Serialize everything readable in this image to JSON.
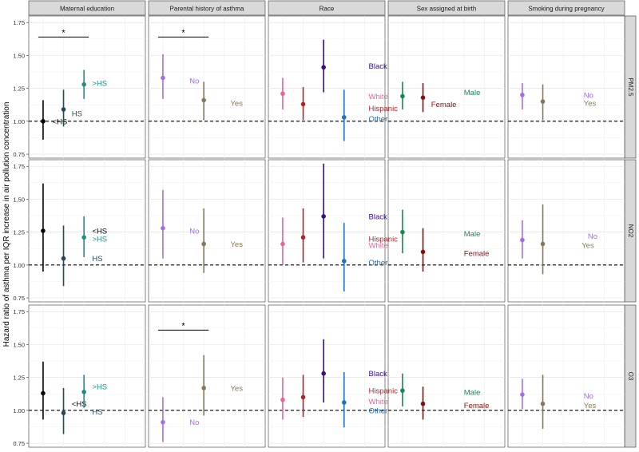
{
  "chart_data": {
    "type": "scatter",
    "subtype": "faceted point-range (estimate with confidence interval)",
    "ylabel": "Hazard ratio of asthma per IQR increase in air pollution concentration",
    "ylim": [
      0.72,
      1.8
    ],
    "yticks": [
      "0.75",
      "1.00",
      "1.25",
      "1.50",
      "1.75"
    ],
    "reference_line": 1.0,
    "grid": true,
    "columns": [
      "Maternal education",
      "Parental history of asthma",
      "Race",
      "Sex assigned at birth",
      "Smoking during pregnancy"
    ],
    "rows": [
      "PM2.5",
      "NO2",
      "O3"
    ],
    "colors": {
      "<HS": "#000000",
      "HS": "#1b4d55",
      ">HS": "#1a8f8a",
      "No": "#a56de2",
      "Yes": "#857a57",
      "Black": "#3d0a91",
      "White": "#f0609e",
      "Hispanic": "#b0232a",
      "Other": "#1f6fc4",
      "Male": "#138a4f",
      "Female": "#8b0d0d",
      "significance_bar": "#000000",
      "reference": "#000000",
      "strip": "#d9d9d9"
    },
    "significance_marker": "*",
    "panels": [
      {
        "row": 0,
        "col": 0,
        "sig": [
          1,
          3,
          1.64
        ],
        "points": [
          {
            "name": "<HS",
            "x": 1,
            "est": 1.0,
            "lo": 0.86,
            "hi": 1.16,
            "label": "<HS",
            "ly": 1.0,
            "lx": 1.45
          },
          {
            "name": "HS",
            "x": 2,
            "est": 1.09,
            "lo": 0.96,
            "hi": 1.24,
            "label": "HS",
            "ly": 1.06,
            "lx": 2.4
          },
          {
            "name": ">HS",
            "x": 3,
            "est": 1.28,
            "lo": 1.17,
            "hi": 1.39,
            "label": ">HS",
            "ly": 1.29,
            "lx": 3.4
          }
        ]
      },
      {
        "row": 0,
        "col": 1,
        "sig": [
          1,
          3,
          1.64
        ],
        "points": [
          {
            "name": "No",
            "x": 1,
            "est": 1.33,
            "lo": 1.17,
            "hi": 1.51,
            "label": "No",
            "ly": 1.31,
            "lx": 2.3
          },
          {
            "name": "Yes",
            "x": 3,
            "est": 1.16,
            "lo": 1.01,
            "hi": 1.3,
            "label": "Yes",
            "ly": 1.14,
            "lx": 4.3
          }
        ]
      },
      {
        "row": 0,
        "col": 2,
        "points": [
          {
            "name": "White",
            "x": 1,
            "est": 1.21,
            "lo": 1.09,
            "hi": 1.33,
            "label": "White",
            "ly": 1.19,
            "lx": 5.2
          },
          {
            "name": "Hispanic",
            "x": 2,
            "est": 1.13,
            "lo": 1.01,
            "hi": 1.26,
            "label": "Hispanic",
            "ly": 1.1,
            "lx": 5.2
          },
          {
            "name": "Black",
            "x": 3,
            "est": 1.41,
            "lo": 1.22,
            "hi": 1.62,
            "label": "Black",
            "ly": 1.42,
            "lx": 5.2
          },
          {
            "name": "Other",
            "x": 4,
            "est": 1.03,
            "lo": 0.85,
            "hi": 1.24,
            "label": "Other",
            "ly": 1.02,
            "lx": 5.2
          }
        ]
      },
      {
        "row": 0,
        "col": 3,
        "points": [
          {
            "name": "Male",
            "x": 1,
            "est": 1.19,
            "lo": 1.09,
            "hi": 1.3,
            "label": "Male",
            "ly": 1.22,
            "lx": 4.0
          },
          {
            "name": "Female",
            "x": 2,
            "est": 1.18,
            "lo": 1.07,
            "hi": 1.29,
            "label": "Female",
            "ly": 1.13,
            "lx": 2.4
          }
        ]
      },
      {
        "row": 0,
        "col": 4,
        "points": [
          {
            "name": "No",
            "x": 1,
            "est": 1.2,
            "lo": 1.09,
            "hi": 1.29,
            "label": "No",
            "ly": 1.2,
            "lx": 4.0
          },
          {
            "name": "Yes",
            "x": 2,
            "est": 1.15,
            "lo": 1.01,
            "hi": 1.28,
            "label": "Yes",
            "ly": 1.14,
            "lx": 4.0
          }
        ]
      },
      {
        "row": 1,
        "col": 0,
        "points": [
          {
            "name": "<HS",
            "x": 1,
            "est": 1.26,
            "lo": 0.95,
            "hi": 1.62,
            "label": "<HS",
            "ly": 1.26,
            "lx": 3.4
          },
          {
            "name": "HS",
            "x": 2,
            "est": 1.05,
            "lo": 0.84,
            "hi": 1.3,
            "label": "HS",
            "ly": 1.05,
            "lx": 3.4
          },
          {
            "name": ">HS",
            "x": 3,
            "est": 1.21,
            "lo": 1.06,
            "hi": 1.37,
            "label": ">HS",
            "ly": 1.2,
            "lx": 3.4
          }
        ]
      },
      {
        "row": 1,
        "col": 1,
        "points": [
          {
            "name": "No",
            "x": 1,
            "est": 1.28,
            "lo": 1.05,
            "hi": 1.57,
            "label": "No",
            "ly": 1.26,
            "lx": 2.3
          },
          {
            "name": "Yes",
            "x": 3,
            "est": 1.16,
            "lo": 0.94,
            "hi": 1.43,
            "label": "Yes",
            "ly": 1.16,
            "lx": 4.3
          }
        ]
      },
      {
        "row": 1,
        "col": 2,
        "points": [
          {
            "name": "White",
            "x": 1,
            "est": 1.16,
            "lo": 1.0,
            "hi": 1.36,
            "label": "White",
            "ly": 1.15,
            "lx": 5.2
          },
          {
            "name": "Hispanic",
            "x": 2,
            "est": 1.21,
            "lo": 1.02,
            "hi": 1.43,
            "label": "Hispanic",
            "ly": 1.2,
            "lx": 5.2
          },
          {
            "name": "Black",
            "x": 3,
            "est": 1.37,
            "lo": 1.05,
            "hi": 1.77,
            "label": "Black",
            "ly": 1.37,
            "lx": 5.2
          },
          {
            "name": "Other",
            "x": 4,
            "est": 1.03,
            "lo": 0.8,
            "hi": 1.32,
            "label": "Other",
            "ly": 1.02,
            "lx": 5.2
          }
        ]
      },
      {
        "row": 1,
        "col": 3,
        "points": [
          {
            "name": "Male",
            "x": 1,
            "est": 1.25,
            "lo": 1.09,
            "hi": 1.42,
            "label": "Male",
            "ly": 1.24,
            "lx": 4.0
          },
          {
            "name": "Female",
            "x": 2,
            "est": 1.1,
            "lo": 0.95,
            "hi": 1.28,
            "label": "Female",
            "ly": 1.09,
            "lx": 4.0
          }
        ]
      },
      {
        "row": 1,
        "col": 4,
        "points": [
          {
            "name": "No",
            "x": 1,
            "est": 1.19,
            "lo": 1.05,
            "hi": 1.34,
            "label": "No",
            "ly": 1.22,
            "lx": 4.2
          },
          {
            "name": "Yes",
            "x": 2,
            "est": 1.16,
            "lo": 0.93,
            "hi": 1.46,
            "label": "Yes",
            "ly": 1.15,
            "lx": 3.9
          }
        ]
      },
      {
        "row": 2,
        "col": 0,
        "points": [
          {
            "name": "<HS",
            "x": 1,
            "est": 1.13,
            "lo": 0.93,
            "hi": 1.37,
            "label": "<HS",
            "ly": 1.05,
            "lx": 2.4
          },
          {
            "name": "HS",
            "x": 2,
            "est": 0.98,
            "lo": 0.82,
            "hi": 1.17,
            "label": "HS",
            "ly": 0.99,
            "lx": 3.4
          },
          {
            "name": ">HS",
            "x": 3,
            "est": 1.14,
            "lo": 1.02,
            "hi": 1.27,
            "label": ">HS",
            "ly": 1.18,
            "lx": 3.4
          }
        ]
      },
      {
        "row": 2,
        "col": 1,
        "sig": [
          1,
          3,
          1.61
        ],
        "points": [
          {
            "name": "No",
            "x": 1,
            "est": 0.91,
            "lo": 0.76,
            "hi": 1.1,
            "label": "No",
            "ly": 0.91,
            "lx": 2.3
          },
          {
            "name": "Yes",
            "x": 3,
            "est": 1.17,
            "lo": 0.96,
            "hi": 1.42,
            "label": "Yes",
            "ly": 1.17,
            "lx": 4.3
          }
        ]
      },
      {
        "row": 2,
        "col": 2,
        "points": [
          {
            "name": "White",
            "x": 1,
            "est": 1.08,
            "lo": 0.93,
            "hi": 1.25,
            "label": "White",
            "ly": 1.07,
            "lx": 5.2
          },
          {
            "name": "Hispanic",
            "x": 2,
            "est": 1.1,
            "lo": 0.95,
            "hi": 1.27,
            "label": "Hispanic",
            "ly": 1.15,
            "lx": 5.2
          },
          {
            "name": "Black",
            "x": 3,
            "est": 1.28,
            "lo": 1.06,
            "hi": 1.54,
            "label": "Black",
            "ly": 1.28,
            "lx": 5.2
          },
          {
            "name": "Other",
            "x": 4,
            "est": 1.06,
            "lo": 0.87,
            "hi": 1.29,
            "label": "Other",
            "ly": 1.0,
            "lx": 5.2
          }
        ]
      },
      {
        "row": 2,
        "col": 3,
        "points": [
          {
            "name": "Male",
            "x": 1,
            "est": 1.15,
            "lo": 1.03,
            "hi": 1.28,
            "label": "Male",
            "ly": 1.14,
            "lx": 4.0
          },
          {
            "name": "Female",
            "x": 2,
            "est": 1.05,
            "lo": 0.93,
            "hi": 1.18,
            "label": "Female",
            "ly": 1.04,
            "lx": 4.0
          }
        ]
      },
      {
        "row": 2,
        "col": 4,
        "points": [
          {
            "name": "No",
            "x": 1,
            "est": 1.12,
            "lo": 1.01,
            "hi": 1.24,
            "label": "No",
            "ly": 1.11,
            "lx": 4.0
          },
          {
            "name": "Yes",
            "x": 2,
            "est": 1.05,
            "lo": 0.86,
            "hi": 1.27,
            "label": "Yes",
            "ly": 1.04,
            "lx": 4.0
          }
        ]
      }
    ]
  }
}
